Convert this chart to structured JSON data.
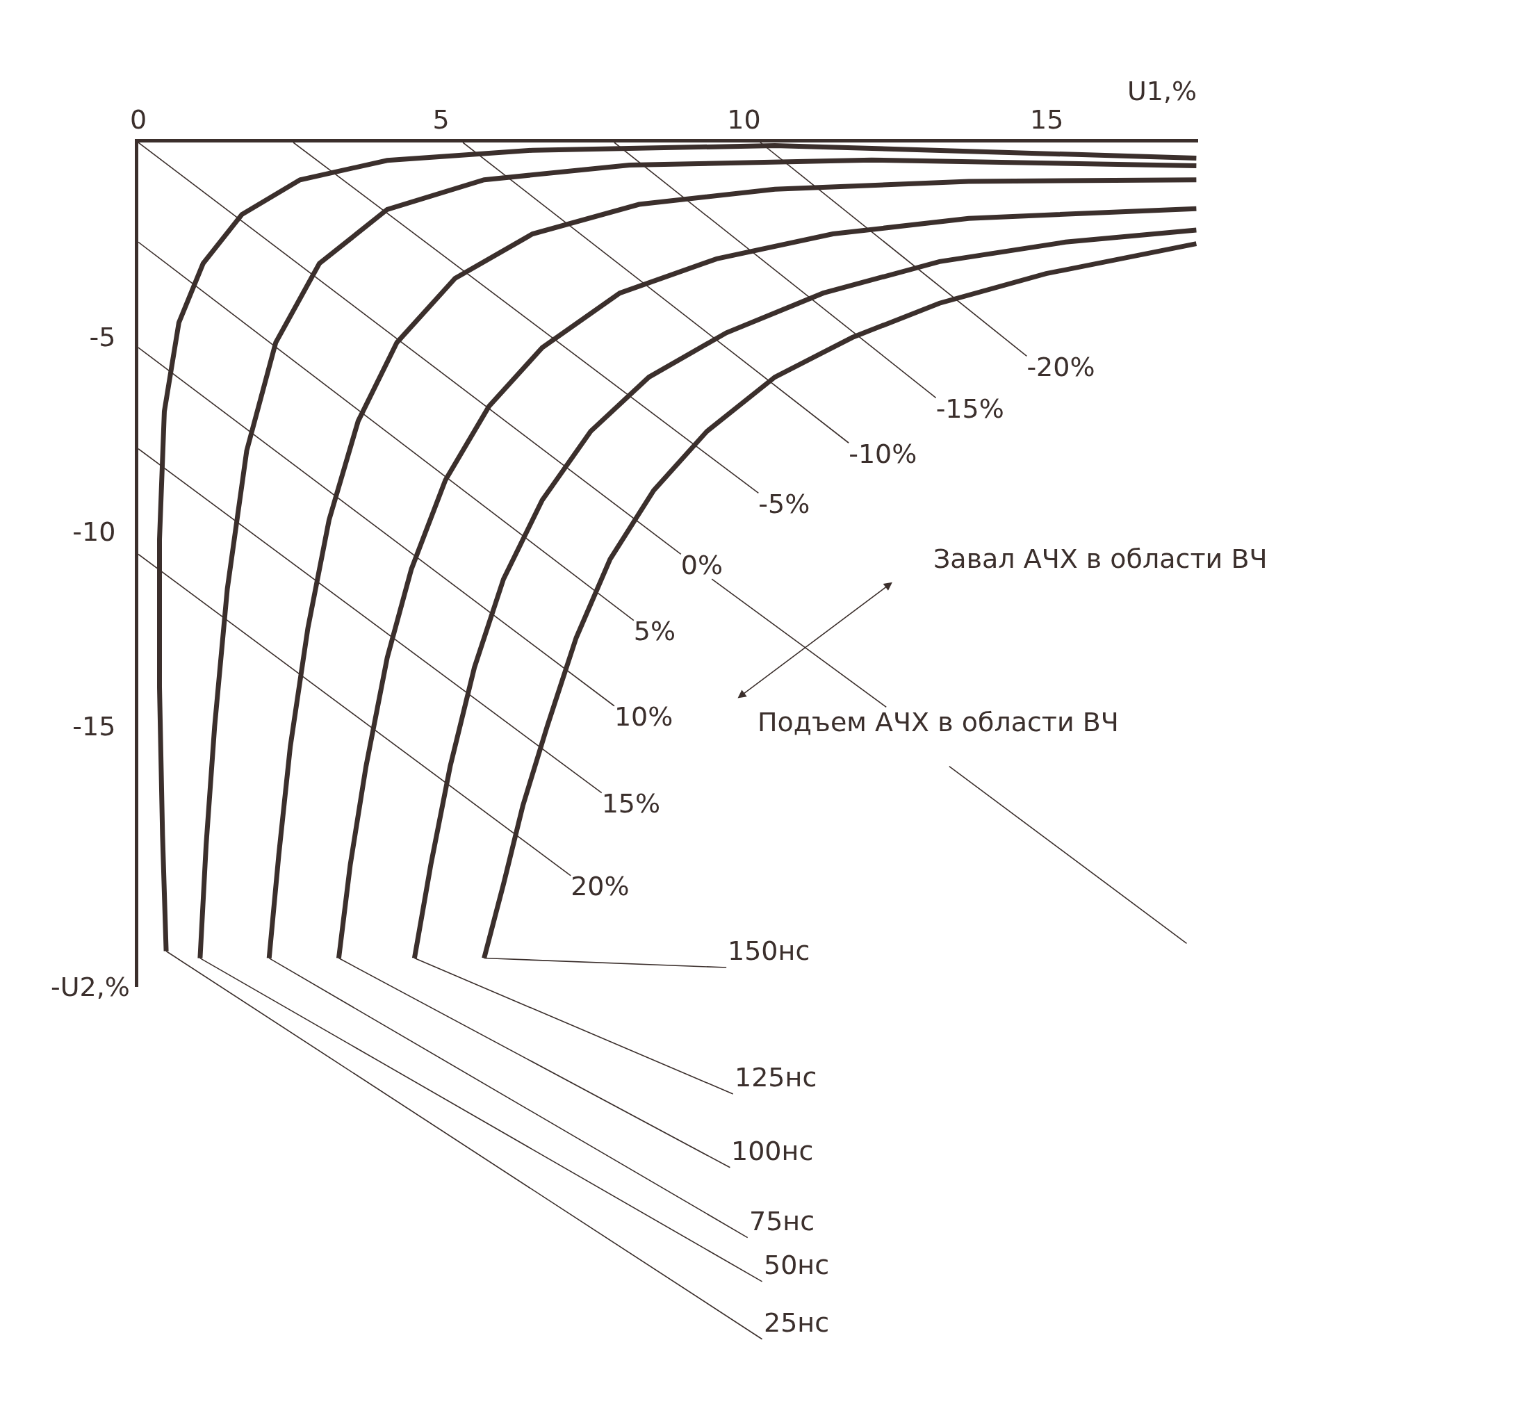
{
  "chart_data": {
    "type": "line",
    "xlabel": "U1,%",
    "ylabel": "-U2,%",
    "xlim": [
      0,
      17.5
    ],
    "ylim": [
      -21.7,
      0
    ],
    "xticks": [
      0,
      5,
      10,
      15
    ],
    "yticks": [
      -5,
      -10,
      -15
    ],
    "grid": false,
    "legend": false,
    "marker": "none",
    "line_style": "solid",
    "series": [
      {
        "name": "25нс",
        "color": "#3b2f2c",
        "x": [
          0.46,
          0.4,
          0.35,
          0.35,
          0.43,
          0.67,
          1.07,
          1.71,
          2.67,
          4.11,
          6.51,
          10.51,
          17.47
        ],
        "values": [
          -20.78,
          -17.8,
          -14.0,
          -10.2,
          -6.91,
          -4.63,
          -3.11,
          -1.85,
          -0.96,
          -0.46,
          -0.2,
          -0.08,
          -0.4
        ]
      },
      {
        "name": "50нс",
        "color": "#3b2f2c",
        "x": [
          1.02,
          1.12,
          1.26,
          1.47,
          1.79,
          2.27,
          2.99,
          4.11,
          5.71,
          8.11,
          12.11,
          17.47
        ],
        "values": [
          -20.96,
          -18.05,
          -15.01,
          -11.47,
          -7.92,
          -5.14,
          -3.11,
          -1.72,
          -0.96,
          -0.58,
          -0.45,
          -0.6
        ]
      },
      {
        "name": "75нс",
        "color": "#3b2f2c",
        "x": [
          2.16,
          2.32,
          2.51,
          2.8,
          3.15,
          3.63,
          4.27,
          5.23,
          6.51,
          8.27,
          10.51,
          13.71,
          17.47
        ],
        "values": [
          -20.96,
          -18.3,
          -15.52,
          -12.48,
          -9.7,
          -7.16,
          -5.14,
          -3.49,
          -2.35,
          -1.59,
          -1.2,
          -1.0,
          -0.96
        ]
      },
      {
        "name": "100нс",
        "color": "#3b2f2c",
        "x": [
          3.31,
          3.5,
          3.76,
          4.11,
          4.51,
          5.07,
          5.79,
          6.67,
          7.95,
          9.55,
          11.47,
          13.71,
          17.47
        ],
        "values": [
          -20.96,
          -18.56,
          -16.03,
          -13.24,
          -10.96,
          -8.68,
          -6.78,
          -5.27,
          -3.87,
          -2.99,
          -2.35,
          -1.95,
          -1.7
        ]
      },
      {
        "name": "125нс",
        "color": "#3b2f2c",
        "x": [
          4.56,
          4.83,
          5.15,
          5.55,
          6.03,
          6.67,
          7.47,
          8.43,
          9.71,
          11.31,
          13.23,
          15.31,
          17.47
        ],
        "values": [
          -20.96,
          -18.56,
          -16.03,
          -13.49,
          -11.22,
          -9.19,
          -7.42,
          -6.03,
          -4.89,
          -3.87,
          -3.06,
          -2.56,
          -2.25
        ]
      },
      {
        "name": "150нс",
        "color": "#3b2f2c",
        "x": [
          5.71,
          6.03,
          6.35,
          6.75,
          7.23,
          7.79,
          8.51,
          9.39,
          10.51,
          11.79,
          13.23,
          14.99,
          17.47
        ],
        "values": [
          -20.96,
          -19.06,
          -17.04,
          -15.01,
          -12.73,
          -10.71,
          -8.94,
          -7.42,
          -6.03,
          -5.01,
          -4.13,
          -3.37,
          -2.6
        ]
      },
      {
        "name": "-20%",
        "color": "#3b2f2c",
        "x": [
          10.27,
          14.67
        ],
        "values": [
          0,
          -5.49
        ]
      },
      {
        "name": "-15%",
        "color": "#3b2f2c",
        "x": [
          7.86,
          13.17
        ],
        "values": [
          0,
          -6.56
        ]
      },
      {
        "name": "-10%",
        "color": "#3b2f2c",
        "x": [
          5.36,
          11.73
        ],
        "values": [
          0,
          -7.72
        ]
      },
      {
        "name": "-5%",
        "color": "#3b2f2c",
        "x": [
          2.56,
          10.24
        ],
        "values": [
          0,
          -9.01
        ]
      },
      {
        "name": "0%",
        "color": "#3b2f2c",
        "x": [
          0,
          8.96
        ],
        "values": [
          0,
          -10.58
        ]
      },
      {
        "name": "5%",
        "color": "#3b2f2c",
        "x": [
          0,
          8.18
        ],
        "values": [
          -2.56,
          -12.28
        ]
      },
      {
        "name": "10%",
        "color": "#3b2f2c",
        "x": [
          0,
          7.86
        ],
        "values": [
          -5.27,
          -14.48
        ]
      },
      {
        "name": "15%",
        "color": "#3b2f2c",
        "x": [
          0,
          7.65
        ],
        "values": [
          -7.87,
          -16.71
        ]
      },
      {
        "name": "20%",
        "color": "#3b2f2c",
        "x": [
          0,
          7.14
        ],
        "values": [
          -10.58,
          -18.84
        ]
      },
      {
        "color": "#3b2f2c",
        "x": [
          9.47,
          12.35
        ],
        "values": [
          -11.22,
          -14.51
        ]
      },
      {
        "color": "#3b2f2c",
        "x": [
          13.39,
          17.31
        ],
        "values": [
          -16.03,
          -20.58
        ]
      }
    ],
    "annotations": [
      "Завал АЧХ в области ВЧ",
      "Подъем АЧХ в области ВЧ"
    ]
  }
}
